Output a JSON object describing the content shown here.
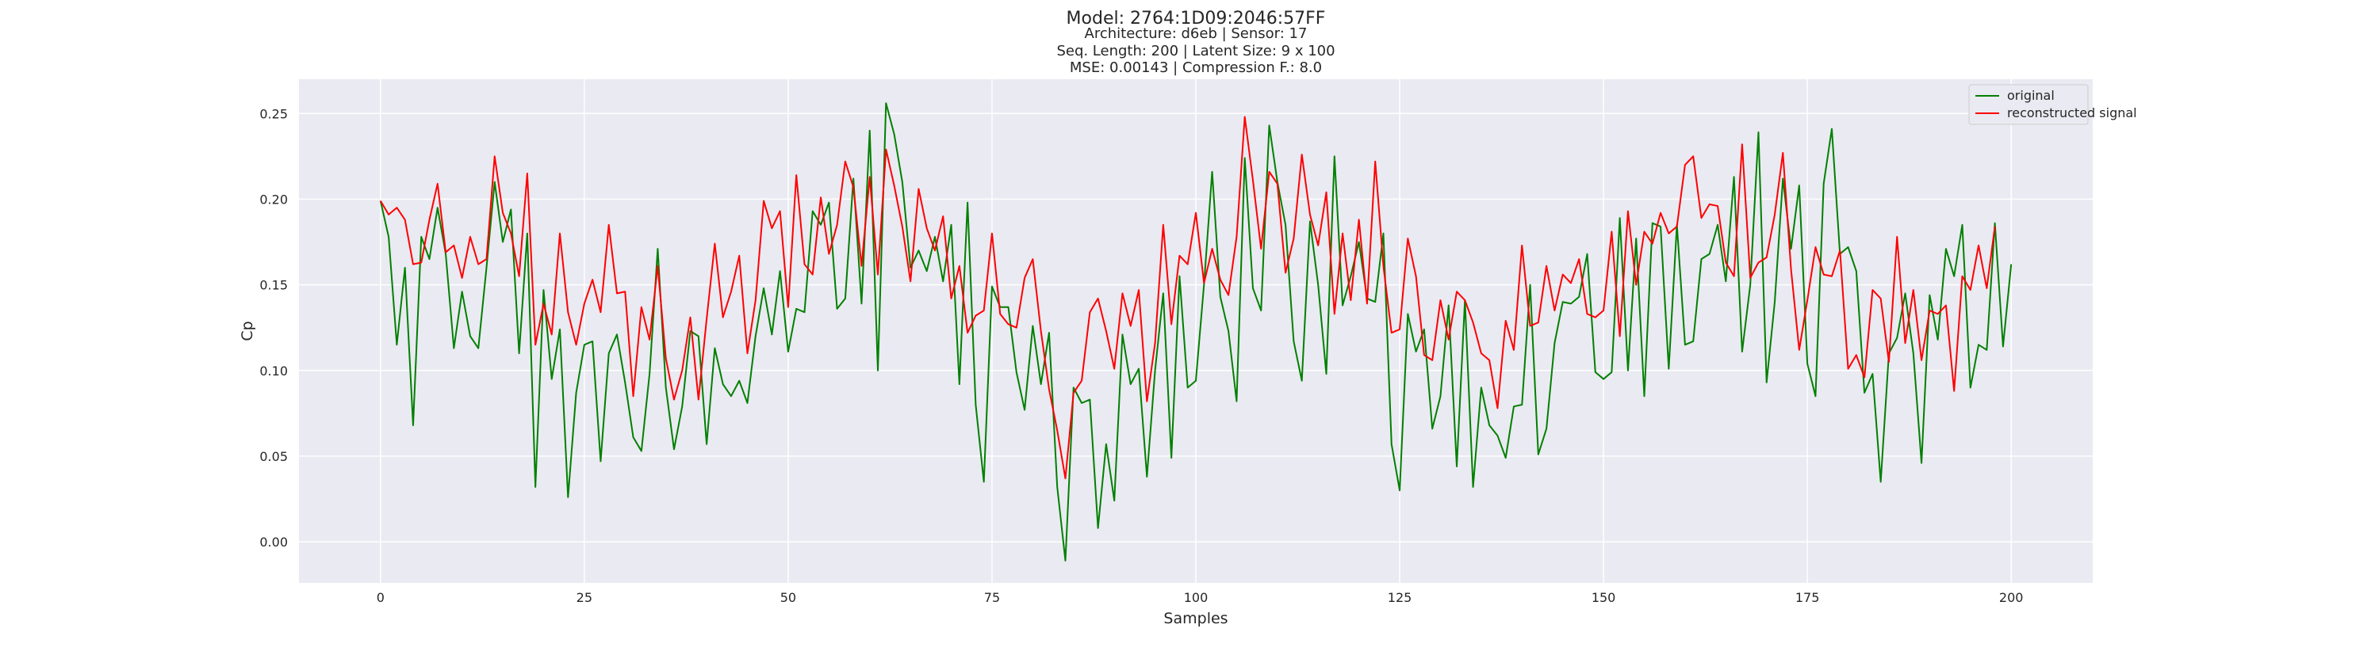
{
  "chart_data": {
    "type": "line",
    "title": "Model: 2764:1D09:2046:57FF",
    "subtitle_lines": [
      "Architecture: d6eb | Sensor: 17",
      "Seq. Length: 200 | Latent Size: 9 x 100",
      "MSE: 0.00143 | Compression F.: 8.0"
    ],
    "xlabel": "Samples",
    "ylabel": "Cp",
    "xlim": [
      -10,
      210
    ],
    "ylim": [
      -0.024,
      0.27
    ],
    "xticks": [
      0,
      25,
      50,
      75,
      100,
      125,
      150,
      175,
      200
    ],
    "yticks": [
      0.0,
      0.05,
      0.1,
      0.15,
      0.2,
      0.25
    ],
    "ytick_labels": [
      "0.00",
      "0.05",
      "0.10",
      "0.15",
      "0.20",
      "0.25"
    ],
    "grid": true,
    "legend_position": "top-right",
    "background_color": "#eaeaf2",
    "grid_color": "#ffffff",
    "series": [
      {
        "name": "original",
        "color": "#008000",
        "values": [
          0.199,
          0.178,
          0.115,
          0.16,
          0.068,
          0.178,
          0.165,
          0.195,
          0.168,
          0.113,
          0.146,
          0.12,
          0.113,
          0.16,
          0.21,
          0.175,
          0.194,
          0.11,
          0.18,
          0.032,
          0.147,
          0.095,
          0.124,
          0.026,
          0.087,
          0.115,
          0.117,
          0.047,
          0.11,
          0.121,
          0.093,
          0.061,
          0.053,
          0.098,
          0.171,
          0.09,
          0.054,
          0.079,
          0.123,
          0.12,
          0.057,
          0.113,
          0.092,
          0.085,
          0.094,
          0.081,
          0.12,
          0.148,
          0.121,
          0.158,
          0.111,
          0.136,
          0.134,
          0.193,
          0.185,
          0.198,
          0.136,
          0.142,
          0.212,
          0.139,
          0.24,
          0.1,
          0.256,
          0.238,
          0.21,
          0.16,
          0.17,
          0.158,
          0.178,
          0.152,
          0.185,
          0.092,
          0.198,
          0.08,
          0.035,
          0.149,
          0.137,
          0.137,
          0.099,
          0.077,
          0.126,
          0.092,
          0.122,
          0.032,
          -0.011,
          0.09,
          0.081,
          0.083,
          0.008,
          0.057,
          0.024,
          0.121,
          0.092,
          0.101,
          0.038,
          0.1,
          0.145,
          0.049,
          0.155,
          0.09,
          0.094,
          0.15,
          0.216,
          0.143,
          0.123,
          0.082,
          0.224,
          0.148,
          0.135,
          0.243,
          0.21,
          0.185,
          0.117,
          0.094,
          0.187,
          0.15,
          0.098,
          0.225,
          0.138,
          0.155,
          0.175,
          0.142,
          0.14,
          0.18,
          0.057,
          0.03,
          0.133,
          0.111,
          0.124,
          0.066,
          0.085,
          0.138,
          0.044,
          0.141,
          0.032,
          0.09,
          0.068,
          0.062,
          0.049,
          0.079,
          0.08,
          0.15,
          0.051,
          0.066,
          0.116,
          0.14,
          0.139,
          0.143,
          0.168,
          0.099,
          0.095,
          0.099,
          0.189,
          0.1,
          0.177,
          0.085,
          0.186,
          0.184,
          0.101,
          0.185,
          0.115,
          0.117,
          0.165,
          0.168,
          0.185,
          0.152,
          0.213,
          0.111,
          0.15,
          0.239,
          0.093,
          0.14,
          0.212,
          0.171,
          0.208,
          0.104,
          0.085,
          0.209,
          0.241,
          0.168,
          0.172,
          0.158,
          0.087,
          0.098,
          0.035,
          0.11,
          0.119,
          0.145,
          0.11,
          0.046,
          0.144,
          0.118,
          0.171,
          0.155,
          0.185,
          0.09,
          0.115,
          0.112,
          0.186,
          0.114,
          0.162
        ]
      },
      {
        "name": "reconstructed signal",
        "color": "#ff0000",
        "values": [
          0.199,
          0.191,
          0.195,
          0.188,
          0.162,
          0.163,
          0.188,
          0.209,
          0.169,
          0.173,
          0.154,
          0.178,
          0.162,
          0.165,
          0.225,
          0.192,
          0.18,
          0.155,
          0.215,
          0.115,
          0.139,
          0.121,
          0.18,
          0.134,
          0.115,
          0.139,
          0.153,
          0.134,
          0.185,
          0.145,
          0.146,
          0.085,
          0.137,
          0.118,
          0.161,
          0.107,
          0.083,
          0.1,
          0.131,
          0.083,
          0.13,
          0.174,
          0.131,
          0.146,
          0.167,
          0.11,
          0.141,
          0.199,
          0.183,
          0.193,
          0.137,
          0.214,
          0.162,
          0.156,
          0.201,
          0.168,
          0.185,
          0.222,
          0.207,
          0.161,
          0.213,
          0.156,
          0.229,
          0.208,
          0.184,
          0.152,
          0.206,
          0.183,
          0.17,
          0.19,
          0.142,
          0.161,
          0.122,
          0.132,
          0.135,
          0.18,
          0.133,
          0.127,
          0.125,
          0.154,
          0.165,
          0.123,
          0.089,
          0.065,
          0.037,
          0.087,
          0.094,
          0.134,
          0.142,
          0.123,
          0.101,
          0.145,
          0.126,
          0.147,
          0.082,
          0.116,
          0.185,
          0.127,
          0.167,
          0.162,
          0.192,
          0.151,
          0.171,
          0.153,
          0.144,
          0.178,
          0.248,
          0.211,
          0.171,
          0.216,
          0.209,
          0.157,
          0.177,
          0.226,
          0.191,
          0.173,
          0.204,
          0.133,
          0.18,
          0.141,
          0.188,
          0.139,
          0.222,
          0.161,
          0.122,
          0.124,
          0.177,
          0.155,
          0.109,
          0.106,
          0.141,
          0.118,
          0.146,
          0.141,
          0.128,
          0.11,
          0.106,
          0.078,
          0.129,
          0.112,
          0.173,
          0.126,
          0.128,
          0.161,
          0.135,
          0.156,
          0.151,
          0.165,
          0.133,
          0.131,
          0.135,
          0.181,
          0.12,
          0.193,
          0.15,
          0.181,
          0.174,
          0.192,
          0.18,
          0.184,
          0.22,
          0.225,
          0.189,
          0.197,
          0.196,
          0.163,
          0.155,
          0.232,
          0.154,
          0.163,
          0.166,
          0.191,
          0.227,
          0.159,
          0.112,
          0.141,
          0.172,
          0.156,
          0.155,
          0.17,
          0.101,
          0.109,
          0.096,
          0.147,
          0.142,
          0.105,
          0.178,
          0.116,
          0.147,
          0.106,
          0.135,
          0.133,
          0.138,
          0.088,
          0.155,
          0.147,
          0.173,
          0.148,
          0.184
        ]
      }
    ]
  }
}
